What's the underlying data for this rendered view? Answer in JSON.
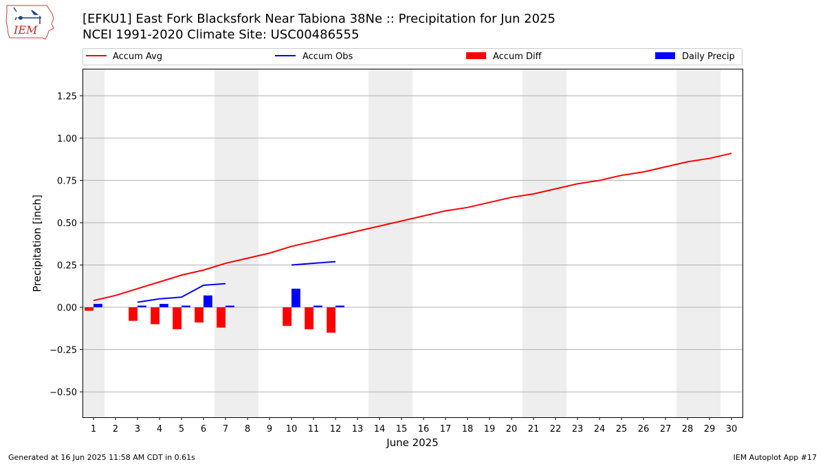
{
  "header": {
    "title_line1": "[EFKU1] East Fork Blacksfork Near Tabiona 38Ne :: Precipitation for Jun 2025",
    "title_line2": "NCEI 1991-2020 Climate Site: USC00486555"
  },
  "logo": {
    "text": "IEM"
  },
  "footer": {
    "generated": "Generated at 16 Jun 2025 11:58 AM CDT in 0.61s",
    "app": "IEM Autoplot App #17"
  },
  "colors": {
    "avg": "#ff0000",
    "obs": "#0000ff",
    "diff": "#ff0000",
    "daily": "#0000ff",
    "weekend": "#eeeeee",
    "grid": "#b0b0b0"
  },
  "chart_data": {
    "type": "bar+line",
    "title": "[EFKU1] East Fork Blacksfork Near Tabiona 38Ne :: Precipitation for Jun 2025",
    "xlabel": "June 2025",
    "ylabel": "Precipitation [inch]",
    "xlim": [
      0.5,
      30.5
    ],
    "ylim": [
      -0.65,
      1.41
    ],
    "yticks": [
      -0.5,
      -0.25,
      0.0,
      0.25,
      0.5,
      0.75,
      1.0,
      1.25
    ],
    "ytick_labels": [
      "−0.50",
      "−0.25",
      "0.00",
      "0.25",
      "0.50",
      "0.75",
      "1.00",
      "1.25"
    ],
    "days": [
      1,
      2,
      3,
      4,
      5,
      6,
      7,
      8,
      9,
      10,
      11,
      12,
      13,
      14,
      15,
      16,
      17,
      18,
      19,
      20,
      21,
      22,
      23,
      24,
      25,
      26,
      27,
      28,
      29,
      30
    ],
    "weekend_days": [
      1,
      7,
      8,
      14,
      15,
      21,
      22,
      28,
      29
    ],
    "legend": [
      "Accum Avg",
      "Accum Obs",
      "Accum Diff",
      "Daily Precip"
    ],
    "series": [
      {
        "name": "Accum Avg",
        "kind": "line",
        "days": [
          1,
          2,
          3,
          4,
          5,
          6,
          7,
          8,
          9,
          10,
          11,
          12,
          13,
          14,
          15,
          16,
          17,
          18,
          19,
          20,
          21,
          22,
          23,
          24,
          25,
          26,
          27,
          28,
          29,
          30
        ],
        "values": [
          0.04,
          0.07,
          0.11,
          0.15,
          0.19,
          0.22,
          0.26,
          0.29,
          0.32,
          0.36,
          0.39,
          0.42,
          0.45,
          0.48,
          0.51,
          0.54,
          0.57,
          0.59,
          0.62,
          0.65,
          0.67,
          0.7,
          0.73,
          0.75,
          0.78,
          0.8,
          0.83,
          0.86,
          0.88,
          0.91
        ]
      },
      {
        "name": "Accum Obs",
        "kind": "line",
        "segments": [
          {
            "days": [
              3,
              4,
              5,
              6,
              7
            ],
            "values": [
              0.03,
              0.05,
              0.06,
              0.13,
              0.14
            ]
          },
          {
            "days": [
              10,
              11,
              12
            ],
            "values": [
              0.25,
              0.26,
              0.27
            ]
          }
        ]
      },
      {
        "name": "Accum Diff",
        "kind": "bar",
        "days": [
          1,
          3,
          4,
          5,
          6,
          7,
          10,
          11,
          12
        ],
        "values": [
          -0.02,
          -0.08,
          -0.1,
          -0.13,
          -0.09,
          -0.12,
          -0.11,
          -0.13,
          -0.15
        ]
      },
      {
        "name": "Daily Precip",
        "kind": "bar",
        "days": [
          1,
          3,
          4,
          5,
          6,
          7,
          10,
          11,
          12
        ],
        "values": [
          0.02,
          0.01,
          0.02,
          0.01,
          0.07,
          0.01,
          0.11,
          0.01,
          0.01
        ]
      }
    ]
  }
}
